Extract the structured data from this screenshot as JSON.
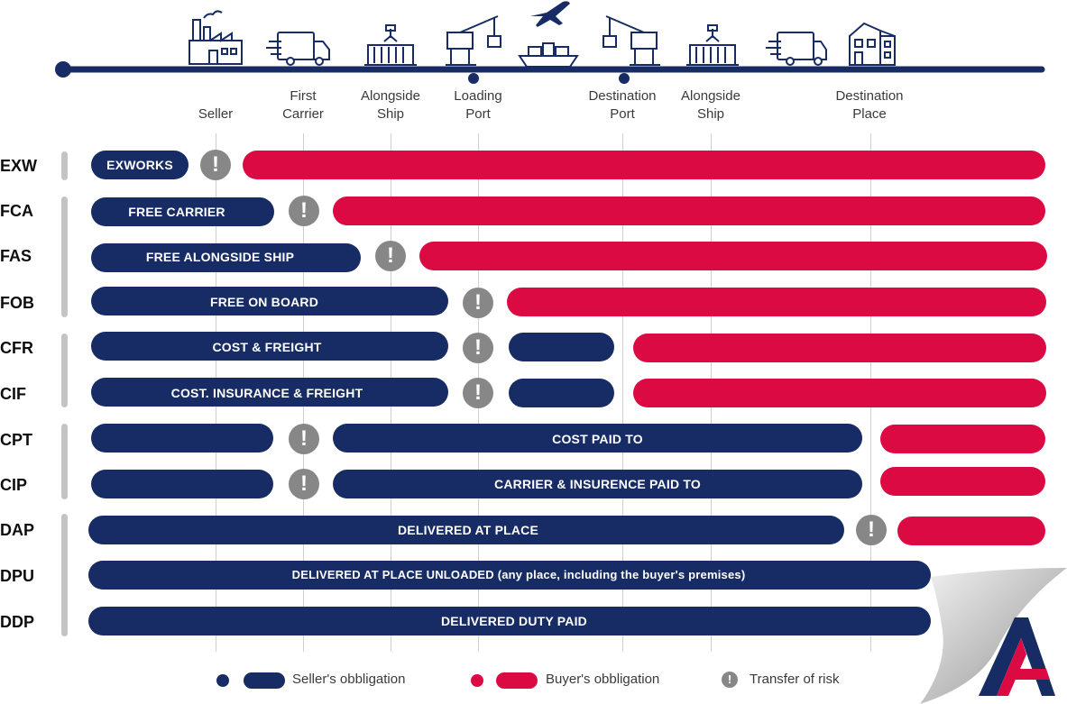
{
  "locations": {
    "seller": "Seller",
    "first_carrier": [
      "First",
      "Carrier"
    ],
    "alongside_ship_origin": [
      "Alongside",
      "Ship"
    ],
    "loading_port": [
      "Loading",
      "Port"
    ],
    "destination_port": [
      "Destination",
      "Port"
    ],
    "alongside_ship_dest": [
      "Alongside",
      "Ship"
    ],
    "destination_place": [
      "Destination",
      "Place"
    ]
  },
  "icons": [
    "factory-icon",
    "truck-icon",
    "container-icon",
    "crane-icon",
    "airplane-icon",
    "ship-icon",
    "crane-icon",
    "container-icon",
    "truck-icon",
    "house-icon"
  ],
  "colors": {
    "seller": "#172c65",
    "buyer": "#dc0a42",
    "risk": "#878787"
  },
  "terms": [
    {
      "code": "EXW",
      "label": "EXWORKS"
    },
    {
      "code": "FCA",
      "label": "FREE CARRIER"
    },
    {
      "code": "FAS",
      "label": "FREE ALONGSIDE SHIP"
    },
    {
      "code": "FOB",
      "label": "FREE ON BOARD"
    },
    {
      "code": "CFR",
      "label": "COST & FREIGHT"
    },
    {
      "code": "CIF",
      "label": "COST. INSURANCE & FREIGHT"
    },
    {
      "code": "CPT",
      "label": "COST PAID TO"
    },
    {
      "code": "CIP",
      "label": "CARRIER & INSURENCE  PAID TO"
    },
    {
      "code": "DAP",
      "label": "DELIVERED AT PLACE"
    },
    {
      "code": "DPU",
      "label": "DELIVERED AT PLACE UNLOADED (any place, including the buyer's premises)"
    },
    {
      "code": "DDP",
      "label": "DELIVERED DUTY PAID"
    }
  ],
  "risk_symbol": "!",
  "legend": {
    "seller": "Seller's obbligation",
    "buyer": "Buyer's obbligation",
    "risk": "Transfer of risk"
  }
}
